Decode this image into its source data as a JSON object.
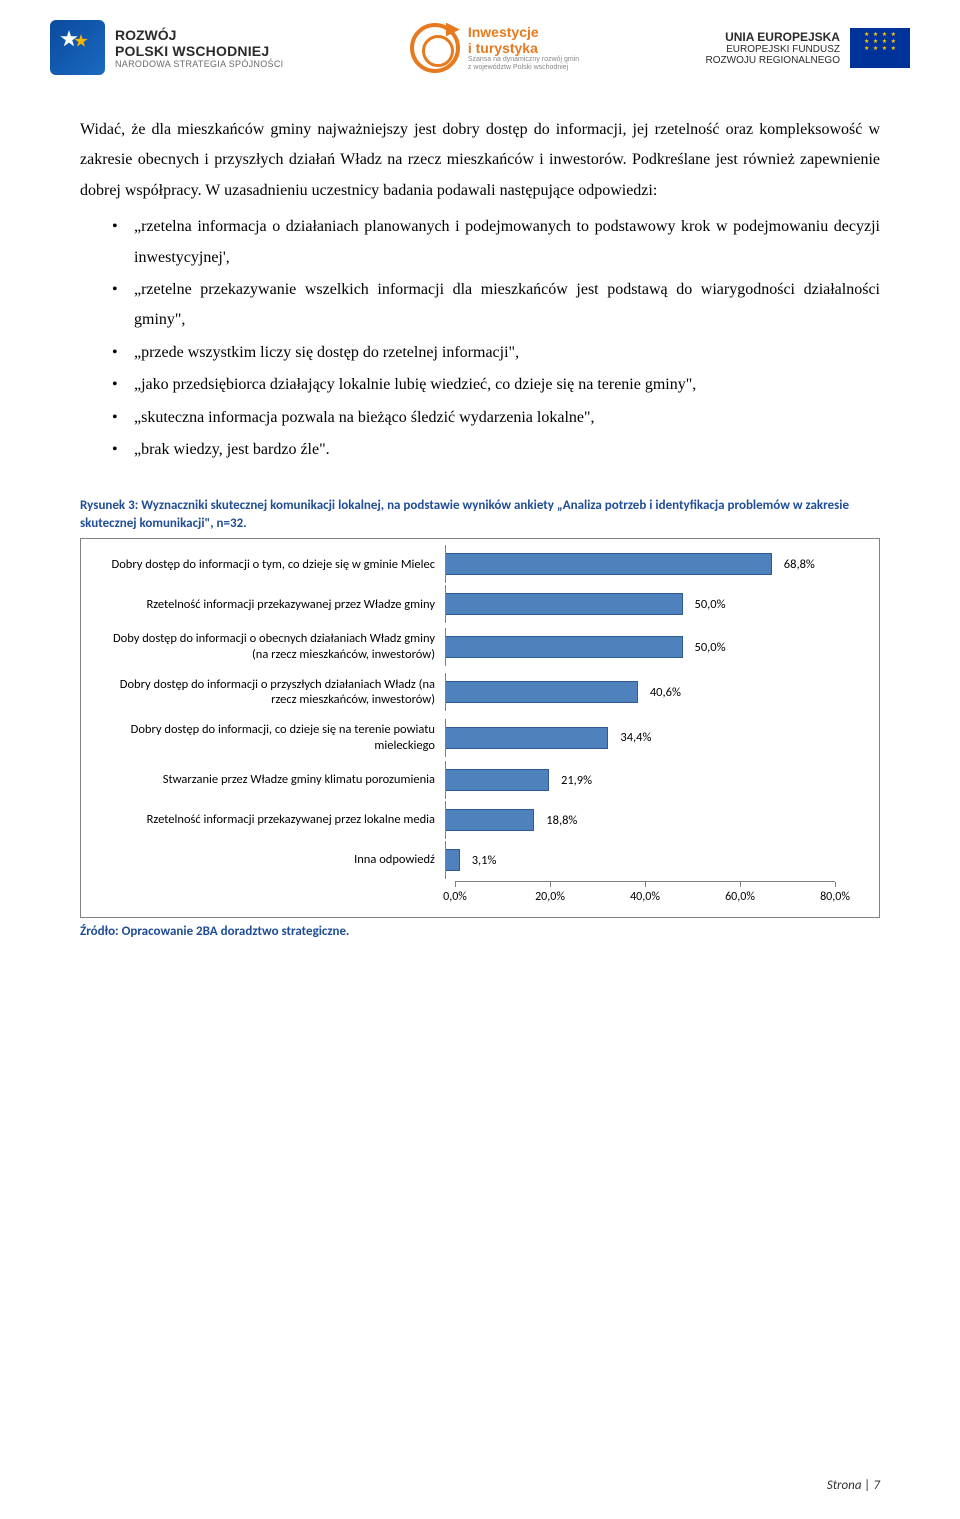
{
  "header": {
    "left": {
      "line1": "ROZWÓJ",
      "line2": "POLSKI WSCHODNIEJ",
      "line3": "NARODOWA STRATEGIA SPÓJNOŚCI"
    },
    "mid": {
      "line1": "Inwestycje",
      "line2": "i turystyka",
      "line3a": "Szansa na dynamiczny rozwój gmin",
      "line3b": "z województw Polski wschodniej"
    },
    "right": {
      "line1": "UNIA EUROPEJSKA",
      "line2": "EUROPEJSKI FUNDUSZ",
      "line3": "ROZWOJU REGIONALNEGO"
    }
  },
  "body": {
    "para": "Widać, że dla mieszkańców gminy najważniejszy jest dobry dostęp do informacji, jej rzetelność oraz kompleksowość w zakresie obecnych i przyszłych działań Władz na rzecz mieszkańców i inwestorów. Podkreślane jest również zapewnienie dobrej współpracy. W uzasadnieniu uczestnicy badania podawali następujące odpowiedzi:",
    "bullets": [
      "„rzetelna informacja o działaniach planowanych i podejmowanych to podstawowy krok w podejmowaniu decyzji inwestycyjnej',",
      "„rzetelne przekazywanie wszelkich informacji dla mieszkańców jest podstawą do wiarygodności działalności gminy\",",
      "„przede wszystkim liczy się dostęp do rzetelnej informacji\",",
      "„jako przedsiębiorca działający lokalnie lubię wiedzieć, co dzieje się na terenie gminy\",",
      "„skuteczna informacja pozwala na bieżąco śledzić wydarzenia lokalne\",",
      "„brak wiedzy, jest bardzo źle\"."
    ]
  },
  "figure": {
    "caption": "Rysunek 3: Wyznaczniki skutecznej komunikacji lokalnej, na podstawie wyników ankiety „Analiza potrzeb i identyfikacja problemów w zakresie skutecznej komunikacji\", n=32.",
    "source": "Źródło: Opracowanie 2BA doradztwo strategiczne.",
    "chart": {
      "type": "bar-horizontal",
      "bar_color": "#4f81bd",
      "bar_border": "#2f5a94",
      "grid_color": "#808080",
      "background_color": "#ffffff",
      "xlim": [
        0,
        80
      ],
      "xtick_step": 20,
      "xticks": [
        "0,0%",
        "20,0%",
        "40,0%",
        "60,0%",
        "80,0%"
      ],
      "label_fontsize": 12.5,
      "items": [
        {
          "label": "Dobry dostęp do informacji o tym, co dzieje się w gminie Mielec",
          "value": 68.8,
          "value_label": "68,8%"
        },
        {
          "label": "Rzetelność informacji przekazywanej przez Władze gminy",
          "value": 50.0,
          "value_label": "50,0%"
        },
        {
          "label": "Doby dostęp do informacji o obecnych działaniach Władz gminy (na rzecz mieszkańców, inwestorów)",
          "value": 50.0,
          "value_label": "50,0%"
        },
        {
          "label": "Dobry dostęp do informacji o przyszłych działaniach Władz (na rzecz mieszkańców, inwestorów)",
          "value": 40.6,
          "value_label": "40,6%"
        },
        {
          "label": "Dobry dostęp do informacji, co dzieje się na terenie powiatu mieleckiego",
          "value": 34.4,
          "value_label": "34,4%"
        },
        {
          "label": "Stwarzanie przez Władze gminy klimatu porozumienia",
          "value": 21.9,
          "value_label": "21,9%"
        },
        {
          "label": "Rzetelność informacji przekazywanej przez lokalne media",
          "value": 18.8,
          "value_label": "18,8%"
        },
        {
          "label": "Inna odpowiedź",
          "value": 3.1,
          "value_label": "3,1%"
        }
      ]
    }
  },
  "footer": {
    "page": "Strona | 7"
  }
}
